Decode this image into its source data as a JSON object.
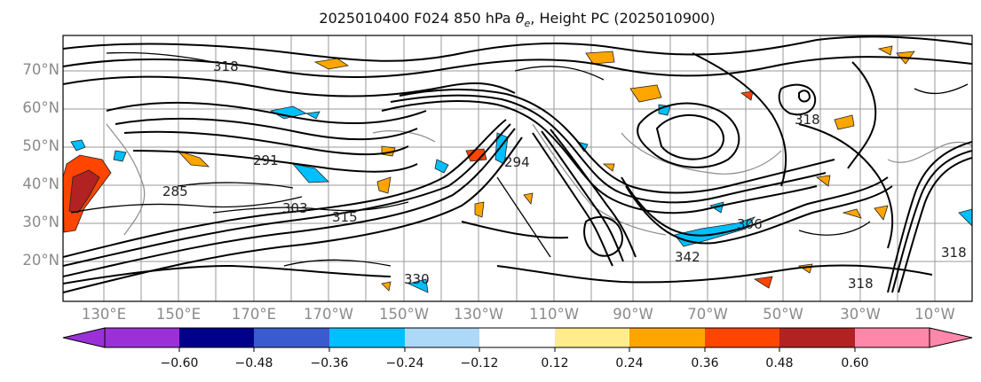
{
  "title": "2025010400 F024 850 hPa θe, Height PC (2025010900)",
  "title_parts": {
    "prefix": "2025010400 F024 850 hPa ",
    "symbol": "θ",
    "subscript": "e",
    "suffix": ", Height PC (2025010900)"
  },
  "lat_labels": [
    "70°N",
    "60°N",
    "50°N",
    "40°N",
    "30°N",
    "20°N"
  ],
  "lon_labels": [
    "130°E",
    "150°E",
    "170°E",
    "170°W",
    "150°W",
    "130°W",
    "110°W",
    "90°W",
    "70°W",
    "50°W",
    "30°W",
    "10°W"
  ],
  "contour_labels": [
    "285",
    "291",
    "318",
    "303",
    "315",
    "294",
    "318",
    "330",
    "318",
    "342",
    "306",
    "318"
  ],
  "colorbar": {
    "ticks": [
      "−0.60",
      "−0.48",
      "−0.36",
      "−0.24",
      "−0.12",
      "0.12",
      "0.24",
      "0.36",
      "0.48",
      "0.60"
    ],
    "under_color": "#9b30d9",
    "over_color": "#ff88aa",
    "colors": [
      "#9b30d9",
      "#00008b",
      "#3a5bd0",
      "#00bfff",
      "#add8f8",
      "#ffffff",
      "#ffec8b",
      "#ffa500",
      "#ff4500",
      "#b22222",
      "#ff88aa"
    ]
  }
}
